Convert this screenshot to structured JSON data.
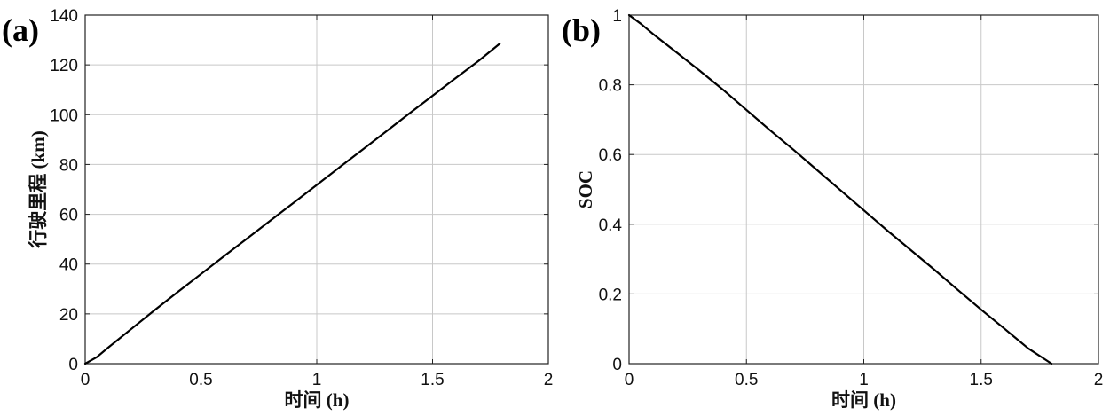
{
  "figure": {
    "panels": [
      {
        "panel_label": "(a)",
        "xlabel": "时间 (h)",
        "ylabel": "行驶里程 (km)"
      },
      {
        "panel_label": "(b)",
        "xlabel": "时间 (h)",
        "ylabel": "SOC"
      }
    ]
  },
  "chart_data": [
    {
      "type": "line",
      "title": "",
      "xlabel": "时间 (h)",
      "ylabel": "行驶里程 (km)",
      "xlim": [
        0,
        2
      ],
      "ylim": [
        0,
        140
      ],
      "xticks": [
        0,
        0.5,
        1,
        1.5,
        2
      ],
      "xtick_labels": [
        "0",
        "0.5",
        "1",
        "1.5",
        "2"
      ],
      "yticks": [
        0,
        20,
        40,
        60,
        80,
        100,
        120,
        140
      ],
      "ytick_labels": [
        "0",
        "20",
        "40",
        "60",
        "80",
        "100",
        "120",
        "140"
      ],
      "grid": true,
      "series": [
        {
          "color": "#000000",
          "x": [
            0,
            0.05,
            0.1,
            0.2,
            0.3,
            0.4,
            0.5,
            0.6,
            0.7,
            0.8,
            0.9,
            1.0,
            1.1,
            1.2,
            1.3,
            1.4,
            1.5,
            1.6,
            1.7,
            1.79
          ],
          "y": [
            0,
            2.6,
            6.5,
            14.0,
            21.5,
            28.8,
            36.0,
            43.2,
            50.3,
            57.5,
            64.6,
            71.8,
            79.0,
            86.1,
            93.3,
            100.5,
            107.6,
            114.7,
            121.7,
            128.5
          ]
        }
      ]
    },
    {
      "type": "line",
      "title": "",
      "xlabel": "时间 (h)",
      "ylabel": "SOC",
      "xlim": [
        0,
        2
      ],
      "ylim": [
        0,
        1
      ],
      "xticks": [
        0,
        0.5,
        1,
        1.5,
        2
      ],
      "xtick_labels": [
        "0",
        "0.5",
        "1",
        "1.5",
        "2"
      ],
      "yticks": [
        0,
        0.2,
        0.4,
        0.6,
        0.8,
        1
      ],
      "ytick_labels": [
        "0",
        "0.2",
        "0.4",
        "0.6",
        "0.8",
        "1"
      ],
      "grid": true,
      "series": [
        {
          "color": "#000000",
          "x": [
            0,
            0.05,
            0.1,
            0.2,
            0.3,
            0.4,
            0.5,
            0.6,
            0.7,
            0.8,
            0.9,
            1.0,
            1.1,
            1.2,
            1.3,
            1.4,
            1.5,
            1.6,
            1.7,
            1.8
          ],
          "y": [
            1.0,
            0.975,
            0.947,
            0.894,
            0.841,
            0.786,
            0.728,
            0.67,
            0.614,
            0.556,
            0.498,
            0.44,
            0.382,
            0.326,
            0.27,
            0.212,
            0.155,
            0.1,
            0.044,
            0.0
          ]
        }
      ]
    }
  ]
}
